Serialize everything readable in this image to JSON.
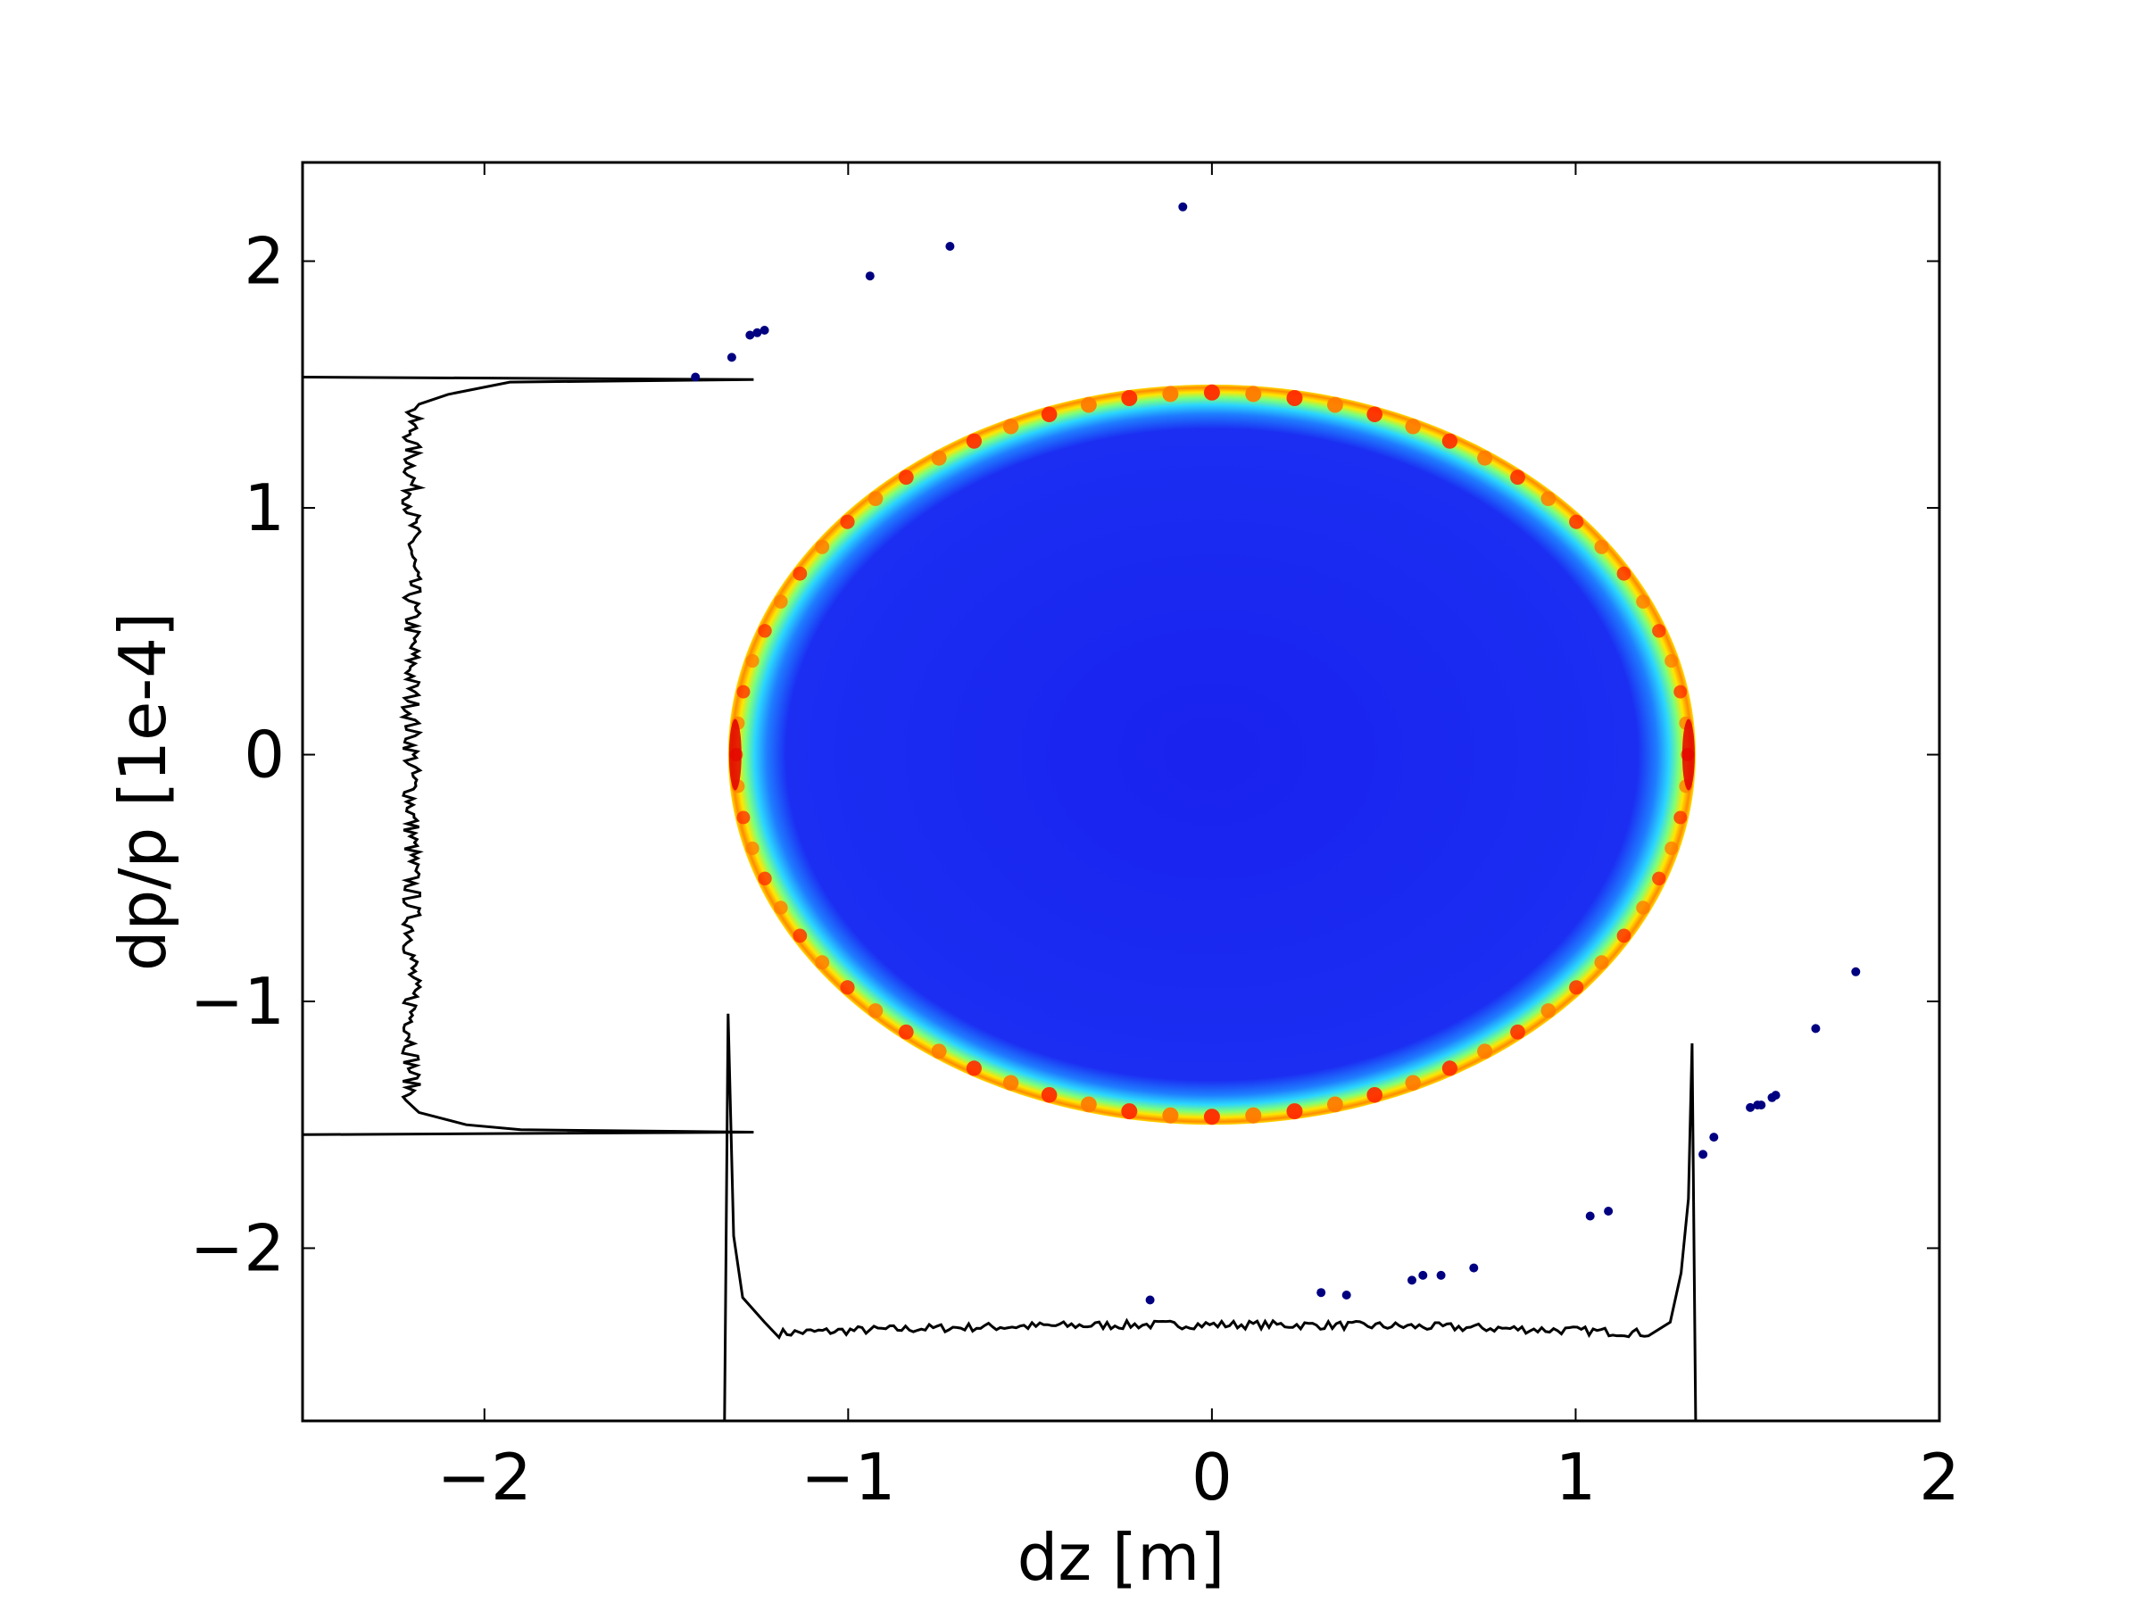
{
  "chart_data": {
    "type": "scatter",
    "title": "",
    "xlabel": "dz [m]",
    "ylabel": "dp/p [1e-4]",
    "xlim": [
      -2.5,
      2.0
    ],
    "ylim": [
      -2.7,
      2.4
    ],
    "xticks": [
      -2,
      -1,
      0,
      1,
      2
    ],
    "yticks": [
      -2,
      -1,
      0,
      1,
      2
    ],
    "xtick_labels": [
      "−2",
      "−1",
      "0",
      "1",
      "2"
    ],
    "ytick_labels": [
      "−2",
      "−1",
      "0",
      "1",
      "2"
    ],
    "grid": false,
    "legend": "none",
    "density_ellipse": {
      "center": [
        0.0,
        0.0
      ],
      "half_width_dz": 1.33,
      "half_height_dpp": 1.5,
      "colormap": "jet",
      "interior_color": "#1a28f0",
      "rim_colors": [
        "#2ad5ff",
        "#7dff7a",
        "#ffe600",
        "#ff3a00"
      ]
    },
    "outlier_points": {
      "color": "#000080",
      "points": [
        [
          -1.42,
          1.53
        ],
        [
          -1.32,
          1.61
        ],
        [
          -1.27,
          1.7
        ],
        [
          -1.25,
          1.71
        ],
        [
          -1.23,
          1.72
        ],
        [
          -0.94,
          1.94
        ],
        [
          -0.72,
          2.06
        ],
        [
          -0.08,
          2.22
        ],
        [
          -0.17,
          -2.21
        ],
        [
          0.3,
          -2.18
        ],
        [
          0.37,
          -2.19
        ],
        [
          0.55,
          -2.13
        ],
        [
          0.58,
          -2.11
        ],
        [
          0.63,
          -2.11
        ],
        [
          0.72,
          -2.08
        ],
        [
          1.04,
          -1.87
        ],
        [
          1.09,
          -1.85
        ],
        [
          1.35,
          -1.62
        ],
        [
          1.38,
          -1.55
        ],
        [
          1.48,
          -1.43
        ],
        [
          1.5,
          -1.42
        ],
        [
          1.51,
          -1.42
        ],
        [
          1.54,
          -1.39
        ],
        [
          1.55,
          -1.38
        ],
        [
          1.66,
          -1.11
        ],
        [
          1.77,
          -0.88
        ]
      ]
    },
    "profile_dz": {
      "description_axis": "dz",
      "color": "#000000",
      "baseline_dpp": -2.7,
      "plateau_dpp": -2.35,
      "spike_left_dz": -1.33,
      "spike_left_peak_dpp": -1.05,
      "spike_right_dz": 1.32,
      "spike_right_peak_dpp": -1.17,
      "edge_left_dz": -1.34,
      "edge_right_dz": 1.33
    },
    "profile_dpp": {
      "description_axis": "dp/p",
      "color": "#000000",
      "baseline_dz": -2.5,
      "plateau_dz": -2.2,
      "spike_top_dpp": 1.52,
      "spike_top_peak_dz": -1.26,
      "spike_bottom_dpp": -1.53,
      "spike_bottom_peak_dz": -1.26,
      "edge_top_dpp": 1.53,
      "edge_bottom_dpp": -1.54
    }
  }
}
